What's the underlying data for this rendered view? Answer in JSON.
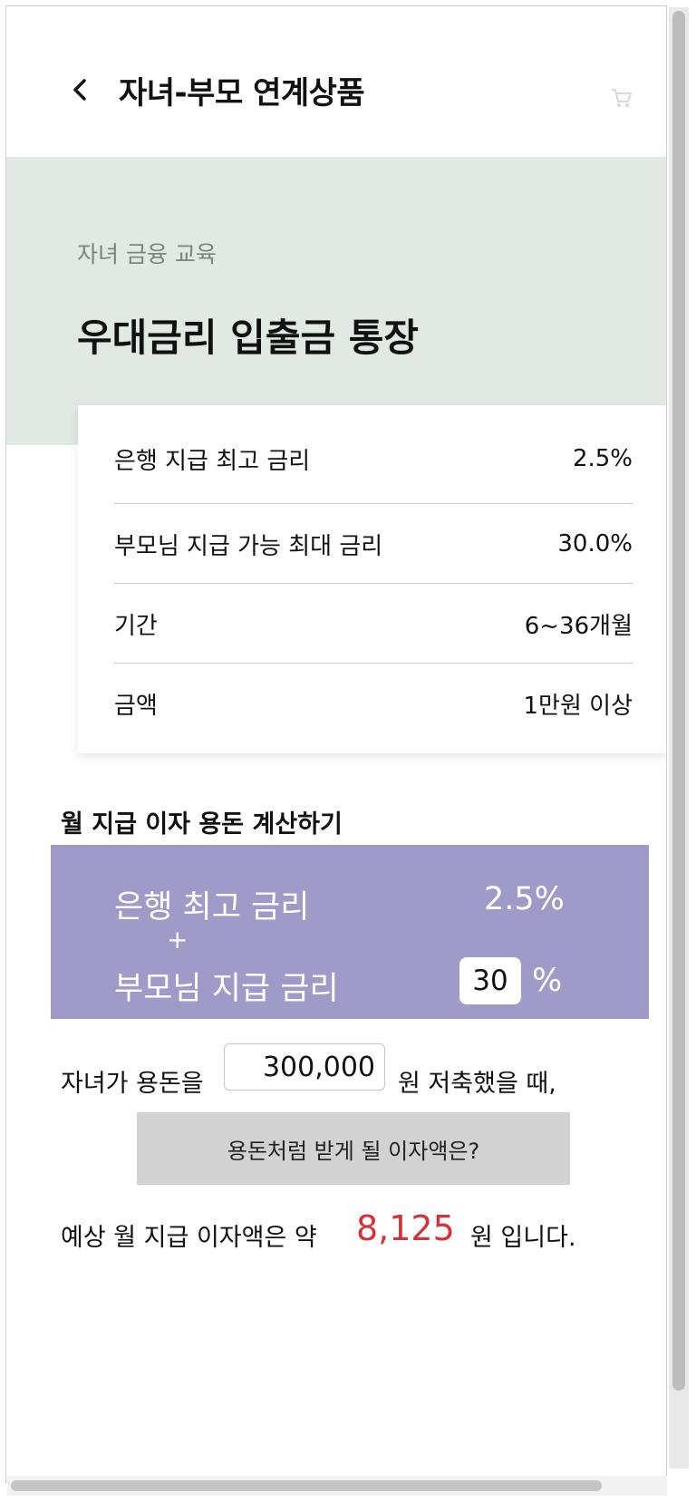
{
  "header": {
    "back_icon": "chevron-left-icon",
    "title": "자녀-부모 연계상품",
    "cart_icon": "cart-icon"
  },
  "product": {
    "category": "자녀 금융 교육",
    "name": "우대금리 입출금 통장"
  },
  "details": [
    {
      "label": "은행 지급 최고 금리",
      "value": "2.5%"
    },
    {
      "label": "부모님 지급 가능 최대 금리",
      "value": "30.0%"
    },
    {
      "label": "기간",
      "value": "6~36개월"
    },
    {
      "label": "금액",
      "value": "1만원 이상"
    }
  ],
  "calculator": {
    "section_title": "월 지급 이자 용돈 계산하기",
    "bank_rate_label": "은행 최고 금리",
    "bank_rate_value": "2.5%",
    "plus": "+",
    "parent_rate_label": "부모님 지급 금리",
    "parent_rate_value": "30",
    "percent": "%",
    "panel_color": "#9f9ac7",
    "savings_prefix": "자녀가 용돈을",
    "savings_value": "300,000",
    "savings_suffix": "원 저축했을 때,",
    "calc_button": "용돈처럼 받게 될 이자액은?",
    "result_prefix": "예상 월 지급 이자액은 약",
    "result_value": "8,125",
    "result_suffix": "원 입니다.",
    "result_color": "#d3333a"
  }
}
